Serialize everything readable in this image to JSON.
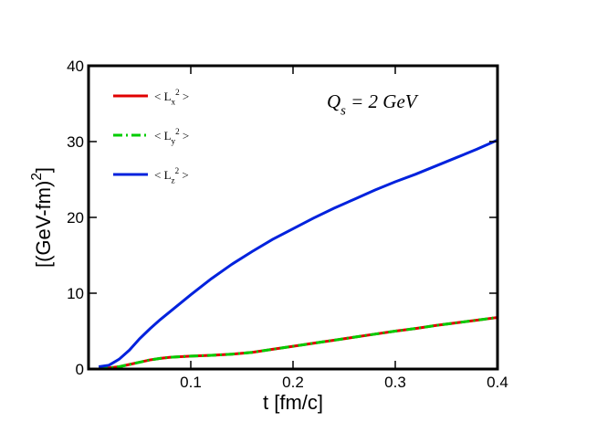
{
  "chart_data": {
    "type": "line",
    "ylabel": "[(GeV-fm)2]",
    "xlabel": "t  [fm/c]",
    "annotation": "Qs = 2 GeV",
    "x": [
      0.01,
      0.02,
      0.03,
      0.04,
      0.05,
      0.06,
      0.07,
      0.08,
      0.1,
      0.12,
      0.14,
      0.16,
      0.18,
      0.2,
      0.22,
      0.24,
      0.26,
      0.28,
      0.3,
      0.32,
      0.34,
      0.36,
      0.38,
      0.4
    ],
    "series": [
      {
        "name": "< Lx2 >",
        "color": "#e00000",
        "linestyle": "solid",
        "values": [
          0.1,
          0.15,
          0.3,
          0.6,
          0.9,
          1.2,
          1.4,
          1.55,
          1.7,
          1.8,
          1.95,
          2.2,
          2.6,
          3.0,
          3.4,
          3.8,
          4.2,
          4.6,
          5.0,
          5.35,
          5.75,
          6.1,
          6.45,
          6.8
        ]
      },
      {
        "name": "< Ly2 >",
        "color": "#00cc00",
        "linestyle": "dashdot",
        "values": [
          0.1,
          0.15,
          0.3,
          0.6,
          0.9,
          1.2,
          1.4,
          1.55,
          1.7,
          1.8,
          1.95,
          2.2,
          2.6,
          3.0,
          3.4,
          3.8,
          4.2,
          4.6,
          5.0,
          5.35,
          5.75,
          6.1,
          6.45,
          6.8
        ]
      },
      {
        "name": "< Lz2 >",
        "color": "#0022dd",
        "linestyle": "solid",
        "values": [
          0.3,
          0.5,
          1.3,
          2.5,
          4.0,
          5.3,
          6.5,
          7.6,
          9.8,
          11.9,
          13.8,
          15.5,
          17.1,
          18.5,
          19.9,
          21.2,
          22.4,
          23.6,
          24.7,
          25.7,
          26.8,
          27.9,
          29.0,
          30.2
        ]
      }
    ],
    "xlim": [
      0,
      0.4
    ],
    "xticks": [
      0.1,
      0.2,
      0.3,
      0.4
    ],
    "ylim": [
      0,
      40
    ],
    "yticks": [
      0,
      10,
      20,
      30,
      40
    ],
    "legend": "upper left"
  }
}
